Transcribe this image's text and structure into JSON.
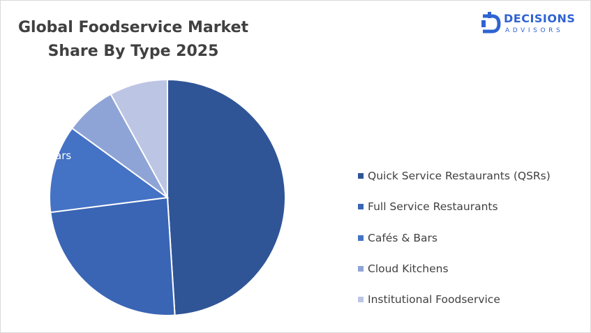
{
  "chart_data": {
    "type": "pie",
    "title_lines": [
      "Global Foodservice Market",
      "Share By Type 2025"
    ],
    "categories": [
      "Quick Service Restaurants (QSRs)",
      "Full Service Restaurants",
      "Cafés & Bars",
      "Cloud Kitchens",
      "Institutional Foodservice"
    ],
    "values": [
      49,
      24,
      12,
      7,
      8
    ],
    "colors": [
      "#2f5597",
      "#3a65b4",
      "#4472c4",
      "#8fa4d6",
      "#bcc5e4"
    ],
    "legend_position": "right",
    "visible_data_labels": [
      {
        "category_index": 2,
        "text": "ars"
      }
    ]
  },
  "logo": {
    "name": "DECISIONS",
    "subtitle": "ADVISORS",
    "icon": "decisions-advisors-logo-icon",
    "color": "#2f63d1"
  }
}
